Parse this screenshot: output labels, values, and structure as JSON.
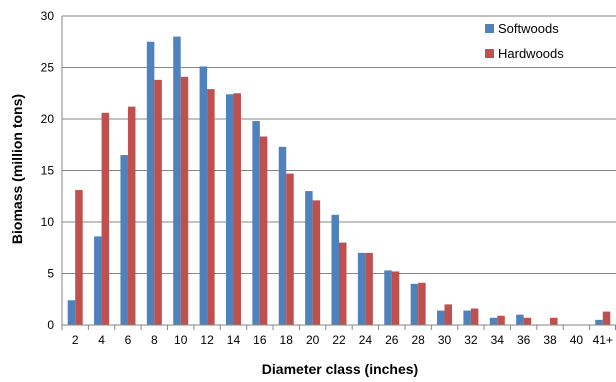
{
  "chart_data": {
    "type": "bar",
    "title": "",
    "xlabel": "Diameter class (inches)",
    "ylabel": "Biomass (million tons)",
    "ylim": [
      0,
      30
    ],
    "yticks": [
      0,
      5,
      10,
      15,
      20,
      25,
      30
    ],
    "grid": true,
    "legend_position": "top-right",
    "categories": [
      "2",
      "4",
      "6",
      "8",
      "10",
      "12",
      "14",
      "16",
      "18",
      "20",
      "22",
      "24",
      "26",
      "28",
      "30",
      "32",
      "34",
      "36",
      "38",
      "40",
      "41+"
    ],
    "series": [
      {
        "name": "Softwoods",
        "color": "#4f81bd",
        "values": [
          2.4,
          8.6,
          16.5,
          27.5,
          28.0,
          25.1,
          22.4,
          19.8,
          17.3,
          13.0,
          10.7,
          7.0,
          5.3,
          4.0,
          1.4,
          1.4,
          0.7,
          1.0,
          0.0,
          0.0,
          0.5
        ]
      },
      {
        "name": "Hardwoods",
        "color": "#c0504d",
        "values": [
          13.1,
          20.6,
          21.2,
          23.8,
          24.1,
          22.9,
          22.5,
          18.3,
          14.7,
          12.1,
          8.0,
          7.0,
          5.2,
          4.1,
          2.0,
          1.6,
          0.9,
          0.7,
          0.7,
          0.0,
          1.3
        ]
      }
    ]
  }
}
